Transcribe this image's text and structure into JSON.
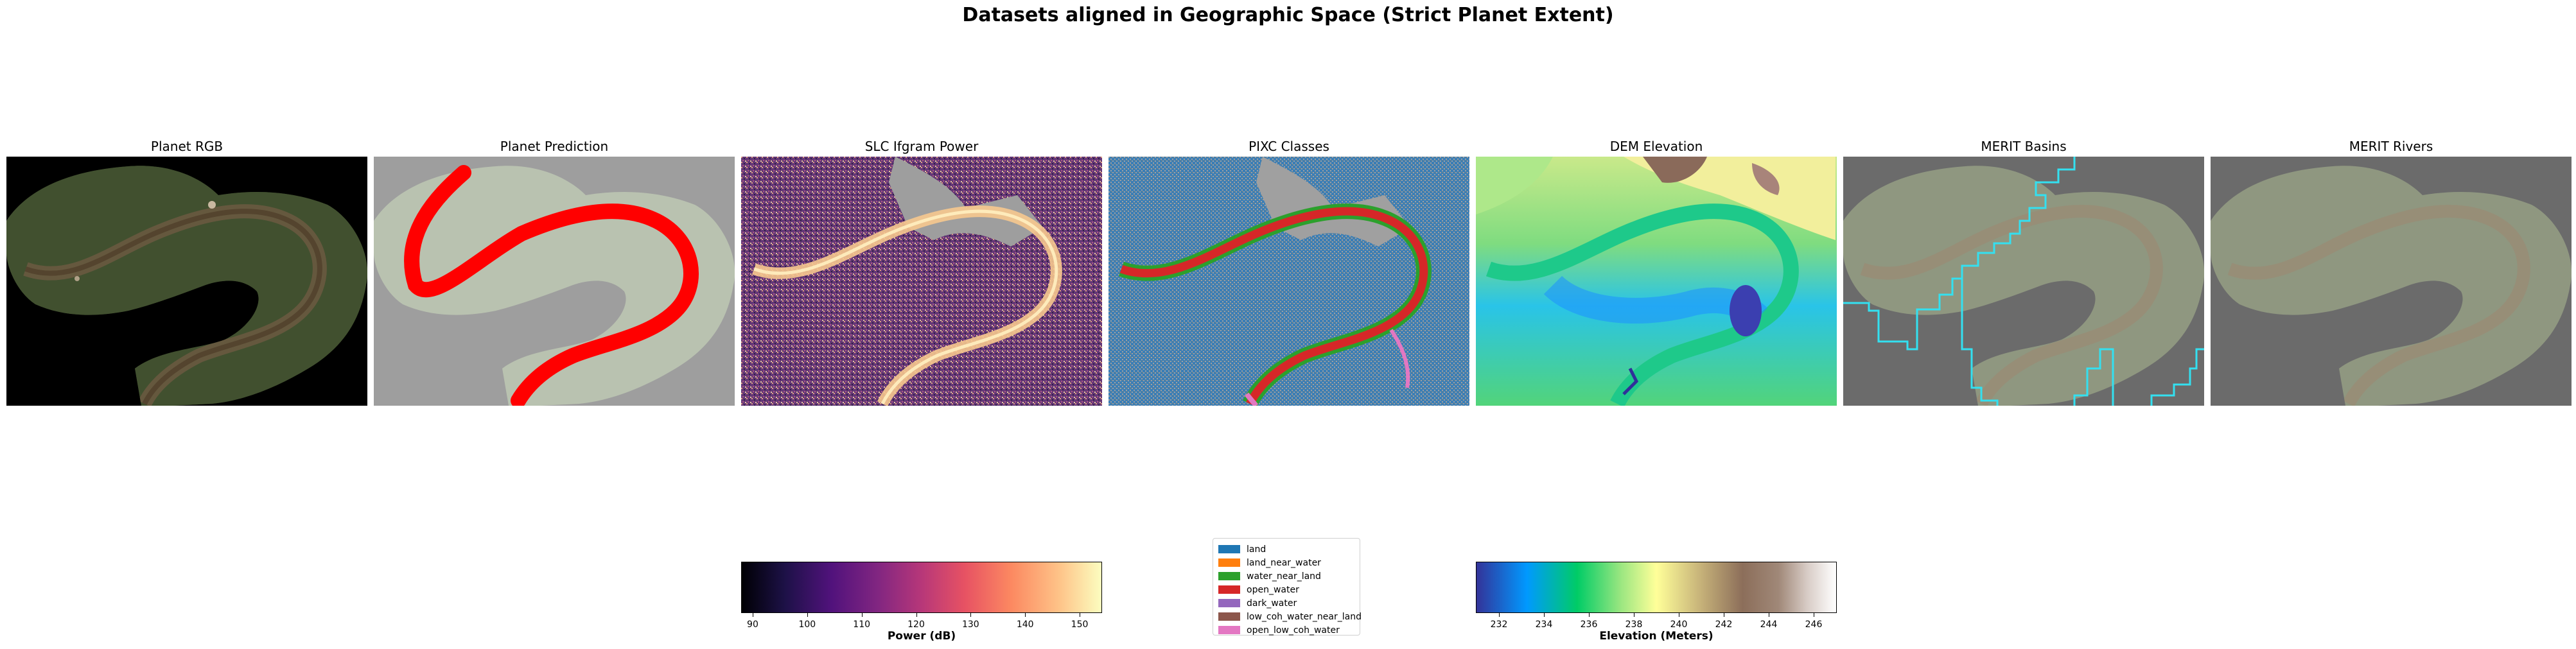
{
  "figure": {
    "title": "Datasets aligned in Geographic Space (Strict Planet Extent)"
  },
  "panels": [
    {
      "title": "Planet RGB"
    },
    {
      "title": "Planet Prediction"
    },
    {
      "title": "SLC Ifgram Power"
    },
    {
      "title": "PIXC Classes"
    },
    {
      "title": "DEM Elevation"
    },
    {
      "title": "MERIT Basins"
    },
    {
      "title": "MERIT Rivers"
    }
  ],
  "power_colorbar": {
    "label": "Power (dB)",
    "colormap": "magma",
    "range": [
      88,
      154
    ],
    "ticks": [
      "90",
      "100",
      "110",
      "120",
      "130",
      "140",
      "150"
    ],
    "tick_values": [
      90,
      100,
      110,
      120,
      130,
      140,
      150
    ]
  },
  "elevation_colorbar": {
    "label": "Elevation (Meters)",
    "colormap": "terrain",
    "range": [
      231,
      247
    ],
    "ticks": [
      "232",
      "234",
      "236",
      "238",
      "240",
      "242",
      "244",
      "246"
    ],
    "tick_values": [
      232,
      234,
      236,
      238,
      240,
      242,
      244,
      246
    ]
  },
  "pixc_legend": {
    "entries": [
      {
        "label": "land",
        "color": "#1f77b4"
      },
      {
        "label": "land_near_water",
        "color": "#ff7f0e"
      },
      {
        "label": "water_near_land",
        "color": "#2ca02c"
      },
      {
        "label": "open_water",
        "color": "#d62728"
      },
      {
        "label": "dark_water",
        "color": "#9467bd"
      },
      {
        "label": "low_coh_water_near_land",
        "color": "#8c564b"
      },
      {
        "label": "open_low_coh_water",
        "color": "#e377c2"
      }
    ]
  },
  "colors": {
    "prediction_river": "#ff0000",
    "basin_outline": "#33e0f0",
    "nodata_gray": "#9e9e9e"
  }
}
